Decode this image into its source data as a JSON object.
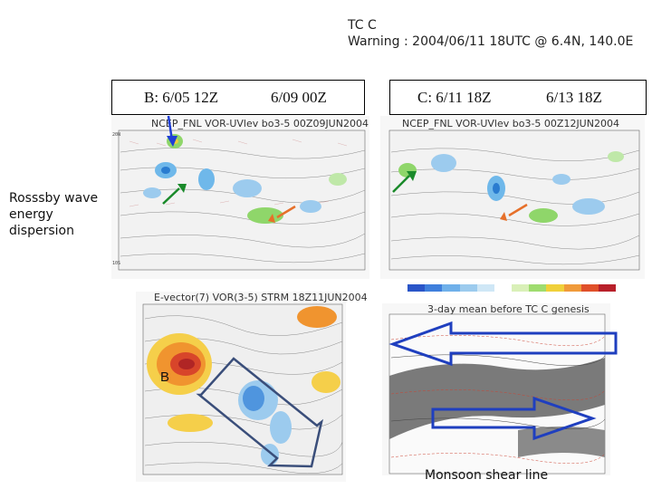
{
  "title": {
    "line1": "TC C",
    "line2": "Warning : 2004/06/11 18UTC @ 6.4N, 140.0E"
  },
  "labels": {
    "b_date": "B: 6/05 12Z",
    "d0609": "6/09 00Z",
    "c_date": "C: 6/11 18Z",
    "d0613": "6/13 18Z"
  },
  "side_label": [
    "Rosssby wave",
    "energy",
    "dispersion"
  ],
  "panels": {
    "top_left_title": "NCEP_FNL VOR-UVlev bo3-5  00Z09JUN2004",
    "top_right_title": "NCEP_FNL VOR-UVlev bo3-5  00Z12JUN2004",
    "bottom_left_title": "E-vector(7) VOR(3-5)  STRM 18Z11JUN2004",
    "bottom_right_title": "3-day mean before TC C genesis",
    "b_marker": "B",
    "monsoon_label": "Monsoon shear line"
  },
  "colors": {
    "blue_arrow": "#1f3fd6",
    "green_arrow": "#1a8a2a",
    "orange_arrow": "#e6702a",
    "big_arrow_outline": "#1f3fbf",
    "box_outline": "#3a4e7a",
    "shear_band": "#7a7a7a"
  },
  "icons": [
    "arrow-down-icon",
    "arrow-up-right-icon",
    "arrow-down-left-icon",
    "arrow-left-icon",
    "arrow-right-icon"
  ]
}
